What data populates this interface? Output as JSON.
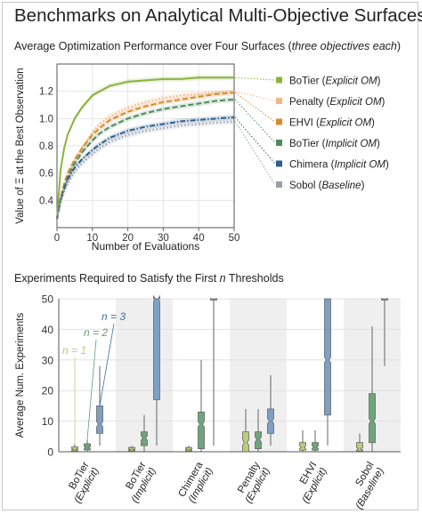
{
  "title": "Benchmarks on Analytical Multi-Objective Surfaces",
  "chart_data": [
    {
      "type": "line",
      "title_main": "Average Optimization Performance over Four Surfaces (",
      "title_italic": "three objectives each",
      "title_end": ")",
      "xlabel": "Number of Evaluations",
      "ylabel": "Value of Ξ at the Best Observation",
      "xlim": [
        0,
        50
      ],
      "ylim": [
        0.2,
        1.4
      ],
      "xticks": [
        "0",
        "10",
        "20",
        "30",
        "40",
        "50"
      ],
      "yticks": [
        "0.4",
        "0.6",
        "0.8",
        "1.0",
        "1.2"
      ],
      "legend_position": "right",
      "x": [
        0,
        1,
        2,
        3,
        5,
        7,
        10,
        12,
        15,
        20,
        25,
        30,
        35,
        40,
        45,
        50
      ],
      "series": [
        {
          "name": "BoTier",
          "tag": "Explicit OM",
          "color": "#8cb33f",
          "style": "solid",
          "values": [
            0.26,
            0.62,
            0.78,
            0.88,
            1.0,
            1.08,
            1.17,
            1.2,
            1.24,
            1.27,
            1.28,
            1.29,
            1.29,
            1.3,
            1.3,
            1.3
          ]
        },
        {
          "name": "Penalty",
          "tag": "Explicit OM",
          "color": "#f0b888",
          "style": "dotted",
          "values": [
            0.26,
            0.38,
            0.48,
            0.56,
            0.68,
            0.78,
            0.9,
            0.96,
            1.02,
            1.08,
            1.12,
            1.15,
            1.17,
            1.18,
            1.19,
            1.2
          ]
        },
        {
          "name": "EHVI",
          "tag": "Explicit OM",
          "color": "#d98a2c",
          "style": "dashed",
          "values": [
            0.26,
            0.42,
            0.52,
            0.6,
            0.7,
            0.78,
            0.88,
            0.93,
            0.99,
            1.05,
            1.09,
            1.12,
            1.14,
            1.16,
            1.18,
            1.19
          ]
        },
        {
          "name": "BoTier",
          "tag": "Implicit OM",
          "color": "#4f8a5e",
          "style": "dashed",
          "values": [
            0.26,
            0.4,
            0.5,
            0.57,
            0.67,
            0.75,
            0.84,
            0.89,
            0.94,
            1.0,
            1.04,
            1.07,
            1.09,
            1.11,
            1.13,
            1.14
          ]
        },
        {
          "name": "Chimera",
          "tag": "Implicit OM",
          "color": "#2f5d8f",
          "style": "dashdot",
          "values": [
            0.26,
            0.4,
            0.48,
            0.55,
            0.64,
            0.7,
            0.77,
            0.81,
            0.86,
            0.91,
            0.94,
            0.96,
            0.98,
            0.99,
            1.0,
            1.01
          ]
        },
        {
          "name": "Sobol",
          "tag": "Baseline",
          "color": "#9aa0ab",
          "style": "dotted",
          "values": [
            0.26,
            0.38,
            0.46,
            0.52,
            0.61,
            0.67,
            0.74,
            0.78,
            0.83,
            0.88,
            0.91,
            0.93,
            0.95,
            0.96,
            0.97,
            0.98
          ]
        }
      ]
    },
    {
      "type": "box",
      "title_main": "Experiments Required to Satisfy the First ",
      "title_italic": "n",
      "title_end": " Thresholds",
      "ylabel": "Average Num. Experiments",
      "ylim": [
        0,
        50
      ],
      "yticks": [
        "0",
        "10",
        "20",
        "30",
        "40",
        "50"
      ],
      "n_labels": [
        "n = 1",
        "n = 2",
        "n = 3"
      ],
      "n_colors": [
        "#b9cd7a",
        "#5f9e6e",
        "#3d6ea8"
      ],
      "groups": [
        {
          "line1": "BoTier",
          "line2": "(Explicit)",
          "shade": false,
          "boxes": [
            {
              "n": 1,
              "color": "#b9cd7a",
              "q1": 0.3,
              "median": 0.8,
              "q3": 1.6,
              "lo": 0,
              "hi": 2.5
            },
            {
              "n": 2,
              "color": "#6fa57c",
              "q1": 0.6,
              "median": 1.3,
              "q3": 2.6,
              "lo": 0,
              "hi": 4
            },
            {
              "n": 3,
              "color": "#7ea0c4",
              "q1": 6,
              "median": 9,
              "q3": 15,
              "lo": 2,
              "hi": 28
            }
          ]
        },
        {
          "line1": "BoTier",
          "line2": "(Implicit)",
          "shade": true,
          "boxes": [
            {
              "n": 1,
              "color": "#b9cd7a",
              "q1": 0.3,
              "median": 0.7,
              "q3": 1.4,
              "lo": 0,
              "hi": 2
            },
            {
              "n": 2,
              "color": "#6fa57c",
              "q1": 2,
              "median": 4.5,
              "q3": 6.5,
              "lo": 0,
              "hi": 12
            },
            {
              "n": 3,
              "color": "#7ea0c4",
              "q1": 17,
              "median": 50,
              "q3": 50,
              "lo": 2,
              "hi": 50
            }
          ]
        },
        {
          "line1": "Chimera",
          "line2": "(Implicit)",
          "shade": false,
          "boxes": [
            {
              "n": 1,
              "color": "#b9cd7a",
              "q1": 0.3,
              "median": 0.7,
              "q3": 1.4,
              "lo": 0,
              "hi": 2
            },
            {
              "n": 2,
              "color": "#6fa57c",
              "q1": 1,
              "median": 9,
              "q3": 13,
              "lo": 0,
              "hi": 30
            },
            {
              "n": 3,
              "color": "#7ea0c4",
              "q1": 50,
              "median": 50,
              "q3": 50,
              "lo": 2,
              "hi": 50
            }
          ]
        },
        {
          "line1": "Penalty",
          "line2": "(Explicit)",
          "shade": true,
          "boxes": [
            {
              "n": 1,
              "color": "#b9cd7a",
              "q1": 0,
              "median": 3,
              "q3": 6.5,
              "lo": 0,
              "hi": 14
            },
            {
              "n": 2,
              "color": "#6fa57c",
              "q1": 1,
              "median": 4,
              "q3": 6.5,
              "lo": 0,
              "hi": 14
            },
            {
              "n": 3,
              "color": "#7ea0c4",
              "q1": 6,
              "median": 10,
              "q3": 14,
              "lo": 2,
              "hi": 25
            }
          ]
        },
        {
          "line1": "EHVI",
          "line2": "(Explicit)",
          "shade": false,
          "boxes": [
            {
              "n": 1,
              "color": "#b9cd7a",
              "q1": 0.5,
              "median": 1.5,
              "q3": 3,
              "lo": 0,
              "hi": 7
            },
            {
              "n": 2,
              "color": "#6fa57c",
              "q1": 0.5,
              "median": 1.5,
              "q3": 3,
              "lo": 0,
              "hi": 7
            },
            {
              "n": 3,
              "color": "#7ea0c4",
              "q1": 12,
              "median": 30,
              "q3": 50,
              "lo": 2,
              "hi": 50
            }
          ]
        },
        {
          "line1": "Sobol",
          "line2": "(Baseline)",
          "shade": true,
          "boxes": [
            {
              "n": 1,
              "color": "#b9cd7a",
              "q1": 0.3,
              "median": 1,
              "q3": 3,
              "lo": 0,
              "hi": 6
            },
            {
              "n": 2,
              "color": "#6fa57c",
              "q1": 3,
              "median": 10,
              "q3": 19,
              "lo": 0,
              "hi": 41
            },
            {
              "n": 3,
              "color": "#7ea0c4",
              "q1": 50,
              "median": 50,
              "q3": 50,
              "lo": 28,
              "hi": 50
            }
          ]
        }
      ]
    }
  ]
}
